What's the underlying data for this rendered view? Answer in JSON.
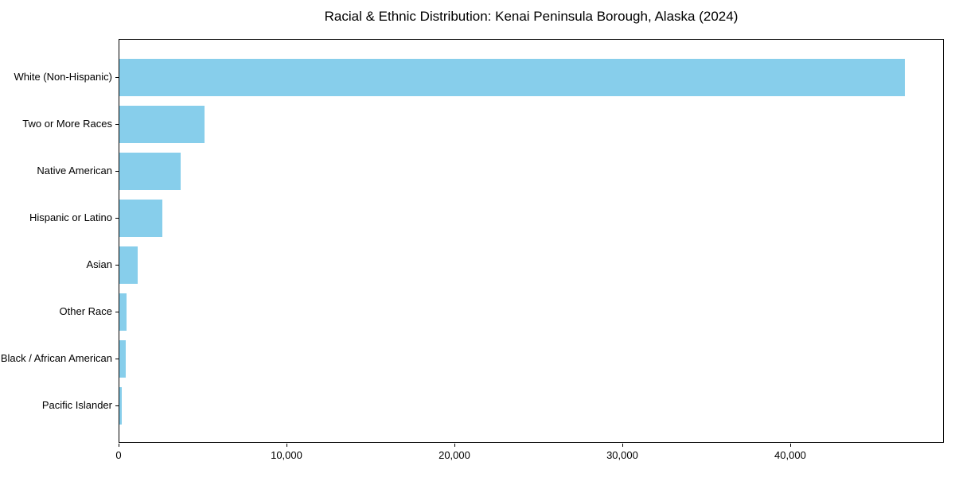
{
  "chart_data": {
    "type": "bar",
    "orientation": "horizontal",
    "title": "Racial & Ethnic Distribution: Kenai Peninsula Borough, Alaska (2024)",
    "categories": [
      "White (Non-Hispanic)",
      "Two or More Races",
      "Native American",
      "Hispanic or Latino",
      "Asian",
      "Other Race",
      "Black / African American",
      "Pacific Islander"
    ],
    "values": [
      46800,
      5050,
      3640,
      2580,
      1080,
      450,
      370,
      160
    ],
    "xlabel": "",
    "ylabel": "",
    "xlim": [
      0,
      49150
    ],
    "x_ticks": [
      0,
      10000,
      20000,
      30000,
      40000
    ],
    "x_tick_labels": [
      "0",
      "10,000",
      "20,000",
      "30,000",
      "40,000"
    ],
    "bar_color": "#87CEEB",
    "background_color": "#ffffff",
    "spine_color": "#000000",
    "grid": false,
    "legend": false
  }
}
